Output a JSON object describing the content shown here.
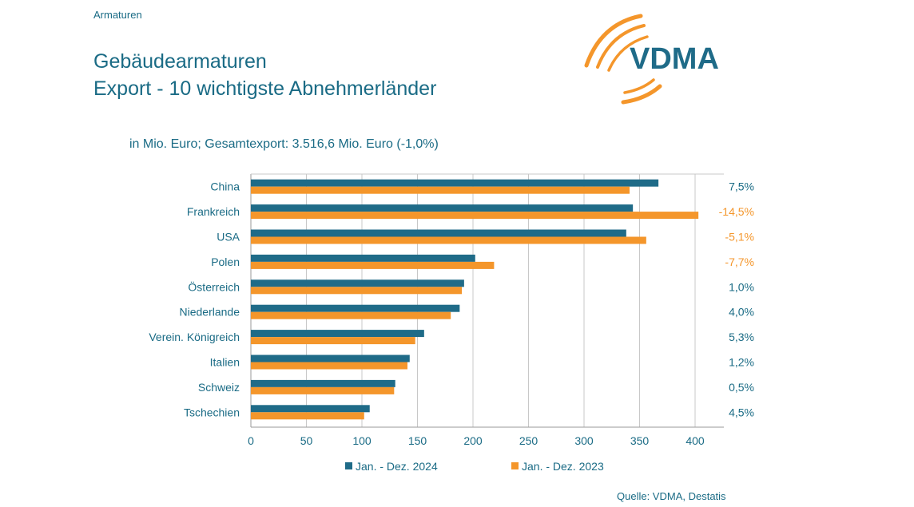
{
  "header": {
    "kicker": "Armaturen",
    "title_line1": "Gebäudearmaturen",
    "title_line2": "Export - 10 wichtigste Abnehmerländer",
    "logo_text": "VDMA"
  },
  "footer": {
    "source": "Quelle: VDMA, Destatis"
  },
  "colors": {
    "series_2024": "#1f6b88",
    "series_2023": "#f4962b",
    "text": "#1a6b85",
    "negative": "#f4962b"
  },
  "chart_data": {
    "type": "bar",
    "orientation": "horizontal",
    "subtitle": "in Mio. Euro; Gesamtexport: 3.516,6 Mio. Euro (-1,0%)",
    "categories": [
      "China",
      "Frankreich",
      "USA",
      "Polen",
      "Österreich",
      "Niederlande",
      "Verein. Königreich",
      "Italien",
      "Schweiz",
      "Tschechien"
    ],
    "series": [
      {
        "name": "Jan. - Dez. 2024",
        "values": [
          367,
          344,
          338,
          202,
          192,
          188,
          156,
          143,
          130,
          107
        ]
      },
      {
        "name": "Jan. - Dez. 2023",
        "values": [
          341,
          403,
          356,
          219,
          190,
          180,
          148,
          141,
          129,
          102
        ]
      }
    ],
    "change_labels": [
      "7,5%",
      "-14,5%",
      "-5,1%",
      "-7,7%",
      "1,0%",
      "4,0%",
      "5,3%",
      "1,2%",
      "0,5%",
      "4,5%"
    ],
    "xlim": [
      0,
      420
    ],
    "xticks": [
      "0",
      "50",
      "100",
      "150",
      "200",
      "250",
      "300",
      "350",
      "400"
    ],
    "grid": true,
    "legend_position": "bottom"
  }
}
